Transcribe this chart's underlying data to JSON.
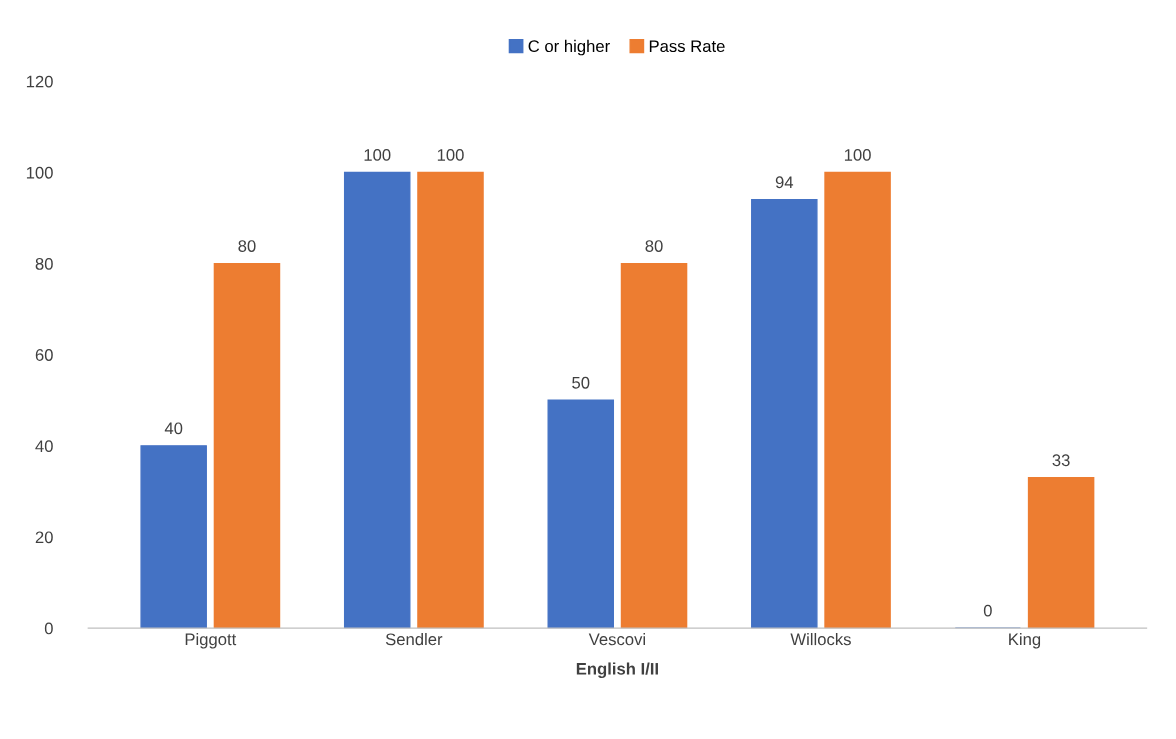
{
  "chart_data": {
    "type": "bar",
    "xlabel": "English I/II",
    "categories": [
      "Piggott",
      "Sendler",
      "Vescovi",
      "Willocks",
      "King"
    ],
    "series": [
      {
        "name": "C or higher",
        "color": "#4472c4",
        "values": [
          40,
          100,
          50,
          94,
          0
        ]
      },
      {
        "name": "Pass Rate",
        "color": "#ed7d31",
        "values": [
          80,
          100,
          80,
          100,
          33
        ]
      }
    ],
    "ylim": [
      0,
      120
    ],
    "yticks": [
      0,
      20,
      40,
      60,
      80,
      100,
      120
    ],
    "grid": false,
    "legend": "top",
    "data_labels": true
  }
}
